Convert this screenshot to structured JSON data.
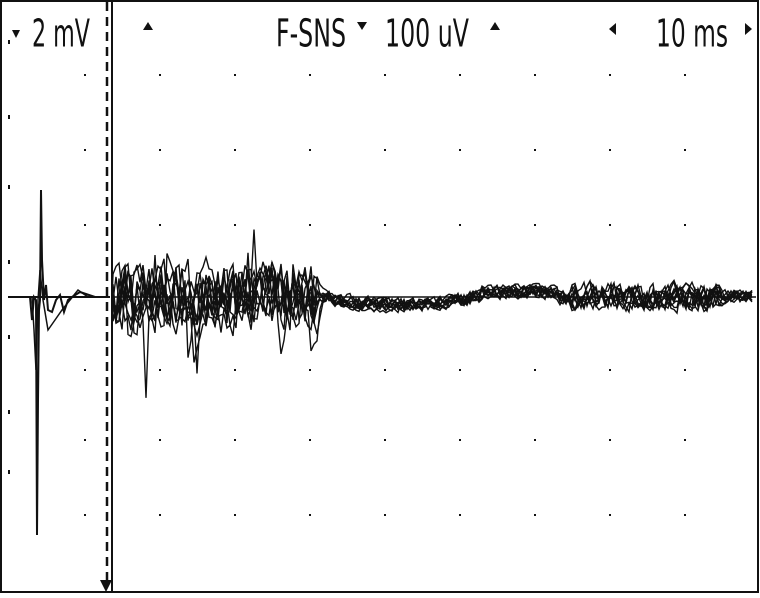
{
  "header": {
    "left_scale": "2 mV",
    "protocol": "F-SNS",
    "sensitivity": "100 uV",
    "sweep": "10 ms"
  }
}
